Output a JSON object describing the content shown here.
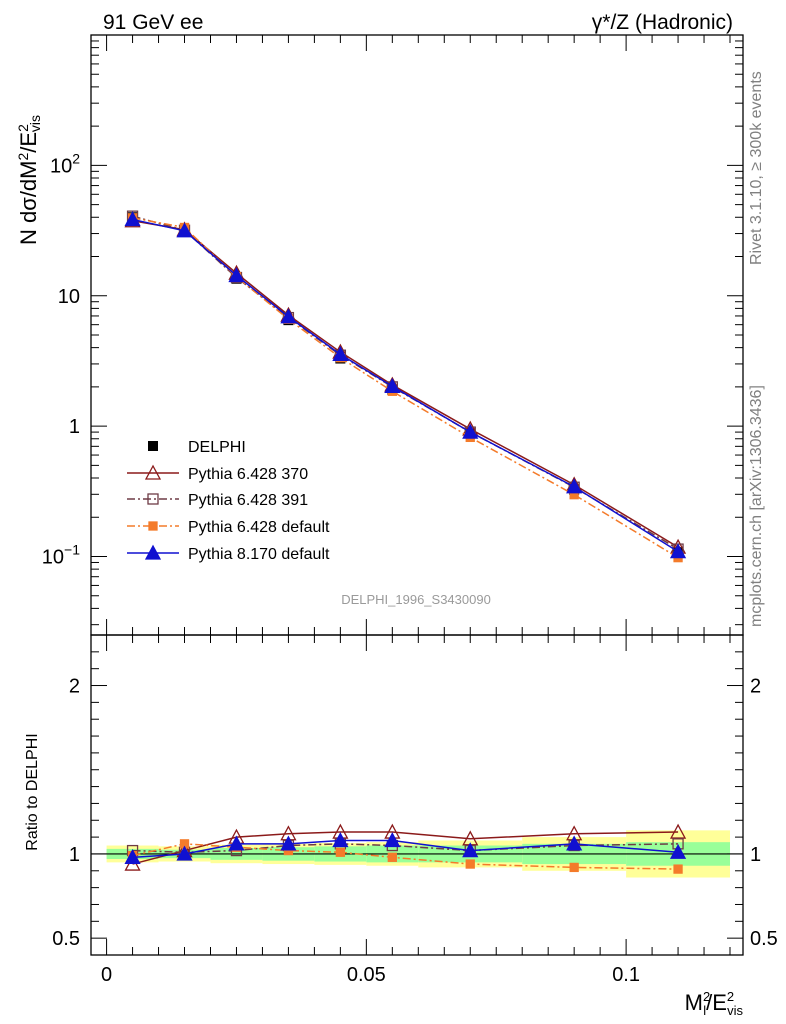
{
  "header": {
    "left": "91 GeV ee",
    "right": "γ*/Z (Hadronic)"
  },
  "side": {
    "rivet": "Rivet 3.1.10, ≥ 300k events",
    "mcplots": "mcplots.cern.ch [arXiv:1306.3436]"
  },
  "watermark": "DELPHI_1996_S3430090",
  "axes": {
    "ylabel_main": "N dσ/dM",
    "ylabel_ratio": "Ratio to DELPHI",
    "xlabel": "M",
    "main_ticks": [
      "10",
      "10",
      "1",
      "10",
      "10"
    ],
    "main_tick_exps": [
      "−1",
      "",
      "",
      "",
      "2"
    ],
    "ratio_ticks": [
      "0.5",
      "1",
      "2"
    ],
    "x_ticks": [
      "0",
      "0.05",
      "0.1"
    ]
  },
  "legend": {
    "items": [
      "DELPHI",
      "Pythia 6.428 370",
      "Pythia 6.428 391",
      "Pythia 6.428 default",
      "Pythia 8.170 default"
    ]
  },
  "chart_data": {
    "type": "line",
    "title": "γ*/Z (Hadronic)",
    "xlabel": "M_l^2/E_vis^2",
    "ylabel": "N dσ/dM_l^2/E_vis^2",
    "y_scale": "log",
    "xlim": [
      -0.003,
      0.1225
    ],
    "ylim": [
      0.025,
      1000
    ],
    "ratio_ylim": [
      0.4,
      2.3
    ],
    "x": [
      0.005,
      0.015,
      0.025,
      0.035,
      0.045,
      0.055,
      0.07,
      0.09,
      0.11
    ],
    "bin_edges": [
      0,
      0.01,
      0.02,
      0.03,
      0.04,
      0.05,
      0.06,
      0.08,
      0.1,
      0.12
    ],
    "reference": {
      "name": "DELPHI",
      "values": [
        40.0,
        31.5,
        13.5,
        6.5,
        3.3,
        1.9,
        0.88,
        0.325,
        0.108
      ],
      "band_inner": [
        0.03,
        0.025,
        0.035,
        0.04,
        0.045,
        0.05,
        0.05,
        0.06,
        0.07
      ],
      "band_outer": [
        0.05,
        0.045,
        0.055,
        0.06,
        0.065,
        0.07,
        0.08,
        0.1,
        0.14
      ]
    },
    "series": [
      {
        "name": "Pythia 6.428 370",
        "color": "#8b1a1a",
        "marker": "triangle-open",
        "dash": "",
        "values": [
          37.6,
          32.1,
          14.9,
          7.1,
          3.7,
          2.07,
          0.95,
          0.355,
          0.118
        ],
        "ratio": [
          0.94,
          1.02,
          1.1,
          1.12,
          1.13,
          1.13,
          1.09,
          1.12,
          1.13
        ]
      },
      {
        "name": "Pythia 6.428 391",
        "color": "#6e3b46",
        "marker": "square-open",
        "dash": "8,3,2,3",
        "values": [
          40.8,
          31.8,
          13.8,
          6.8,
          3.5,
          2.0,
          0.9,
          0.34,
          0.114
        ],
        "ratio": [
          1.02,
          1.01,
          1.02,
          1.05,
          1.06,
          1.05,
          1.02,
          1.05,
          1.06
        ]
      },
      {
        "name": "Pythia 6.428 default",
        "color": "#f47b2a",
        "marker": "square-filled",
        "dash": "8,3,2,3",
        "values": [
          39.6,
          33.4,
          14.0,
          6.6,
          3.35,
          1.85,
          0.82,
          0.298,
          0.098
        ],
        "ratio": [
          0.99,
          1.06,
          1.04,
          1.02,
          1.01,
          0.98,
          0.94,
          0.92,
          0.91
        ]
      },
      {
        "name": "Pythia 8.170 default",
        "color": "#1010d0",
        "marker": "triangle-filled",
        "dash": "",
        "values": [
          38.5,
          31.5,
          14.3,
          6.9,
          3.55,
          2.02,
          0.9,
          0.343,
          0.109
        ],
        "ratio": [
          0.98,
          1.0,
          1.06,
          1.06,
          1.08,
          1.08,
          1.02,
          1.06,
          1.01
        ]
      }
    ]
  }
}
